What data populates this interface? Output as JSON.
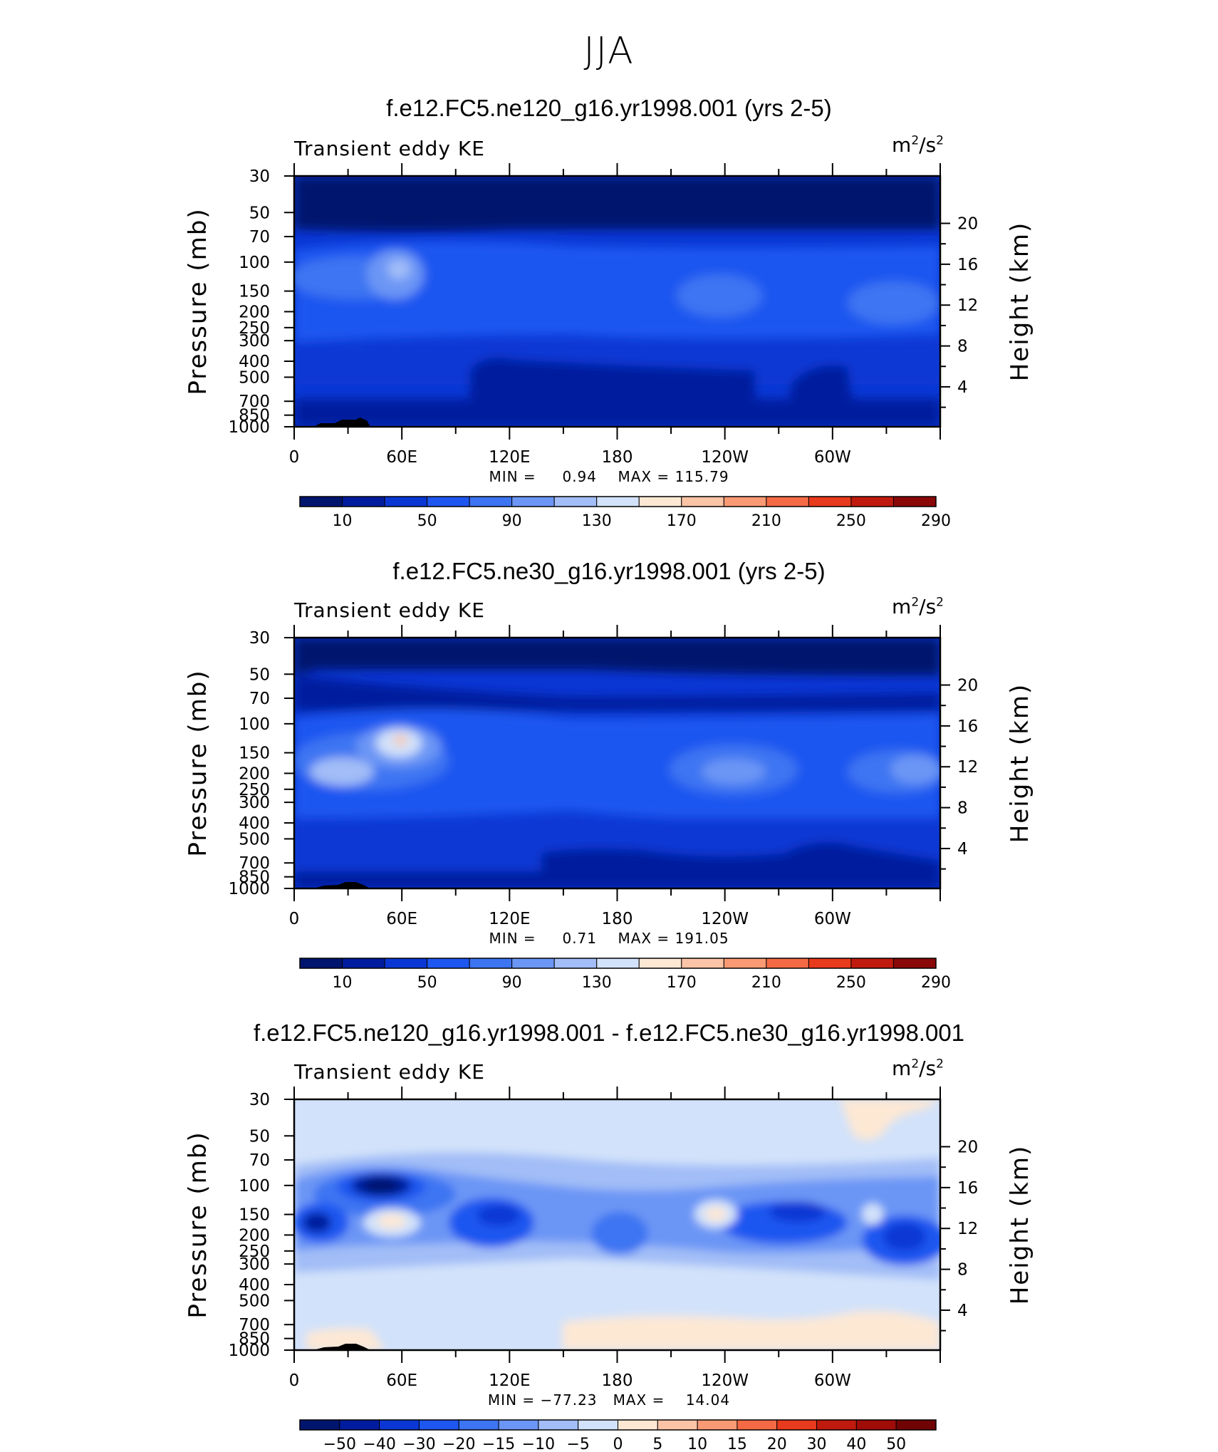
{
  "page": {
    "title": "JJA"
  },
  "chart_data": [
    {
      "type": "heatmap",
      "title": "f.e12.FC5.ne120_g16.yr1998.001 (yrs 2-5)",
      "left_string": "Transient eddy KE",
      "right_string": {
        "base": "m",
        "exp1": "2",
        "mid": "/s",
        "exp2": "2"
      },
      "ylabel": "Pressure (mb)",
      "y2label": "Height (km)",
      "x_ticks": [
        "0",
        "60E",
        "120E",
        "180",
        "120W",
        "60W"
      ],
      "y_ticks": [
        "30",
        "50",
        "70",
        "100",
        "150",
        "200",
        "250",
        "300",
        "400",
        "500",
        "700",
        "850",
        "1000"
      ],
      "y2_ticks": [
        "20",
        "16",
        "12",
        "8",
        "4"
      ],
      "min_label": "MIN =",
      "min_value": "0.94",
      "max_label": "MAX =",
      "max_value": "115.79",
      "stats": {
        "min": 0.94,
        "max": 115.79
      },
      "colorbar": {
        "labels": [
          "10",
          "50",
          "90",
          "130",
          "170",
          "210",
          "250",
          "290"
        ],
        "colors": [
          "#00156e",
          "#001c9e",
          "#0a37d4",
          "#1e56f0",
          "#3d74f2",
          "#6c96f5",
          "#a2bdf7",
          "#d2e2fa",
          "#fde8d4",
          "#fcc4a6",
          "#f99a74",
          "#f46a44",
          "#e83a1c",
          "#c01a0e",
          "#8a0808"
        ]
      }
    },
    {
      "type": "heatmap",
      "title": "f.e12.FC5.ne30_g16.yr1998.001 (yrs 2-5)",
      "left_string": "Transient eddy KE",
      "right_string": {
        "base": "m",
        "exp1": "2",
        "mid": "/s",
        "exp2": "2"
      },
      "ylabel": "Pressure (mb)",
      "y2label": "Height (km)",
      "x_ticks": [
        "0",
        "60E",
        "120E",
        "180",
        "120W",
        "60W"
      ],
      "y_ticks": [
        "30",
        "50",
        "70",
        "100",
        "150",
        "200",
        "250",
        "300",
        "400",
        "500",
        "700",
        "850",
        "1000"
      ],
      "y2_ticks": [
        "20",
        "16",
        "12",
        "8",
        "4"
      ],
      "min_label": "MIN =",
      "min_value": "0.71",
      "max_label": "MAX =",
      "max_value": "191.05",
      "stats": {
        "min": 0.71,
        "max": 191.05
      },
      "colorbar": {
        "labels": [
          "10",
          "50",
          "90",
          "130",
          "170",
          "210",
          "250",
          "290"
        ],
        "colors": [
          "#00156e",
          "#001c9e",
          "#0a37d4",
          "#1e56f0",
          "#3d74f2",
          "#6c96f5",
          "#a2bdf7",
          "#d2e2fa",
          "#fde8d4",
          "#fcc4a6",
          "#f99a74",
          "#f46a44",
          "#e83a1c",
          "#c01a0e",
          "#8a0808"
        ]
      }
    },
    {
      "type": "heatmap",
      "title": "f.e12.FC5.ne120_g16.yr1998.001 - f.e12.FC5.ne30_g16.yr1998.001",
      "left_string": "Transient eddy KE",
      "right_string": {
        "base": "m",
        "exp1": "2",
        "mid": "/s",
        "exp2": "2"
      },
      "ylabel": "Pressure (mb)",
      "y2label": "Height (km)",
      "x_ticks": [
        "0",
        "60E",
        "120E",
        "180",
        "120W",
        "60W"
      ],
      "y_ticks": [
        "30",
        "50",
        "70",
        "100",
        "150",
        "200",
        "250",
        "300",
        "400",
        "500",
        "700",
        "850",
        "1000"
      ],
      "y2_ticks": [
        "20",
        "16",
        "12",
        "8",
        "4"
      ],
      "min_label": "MIN =",
      "min_value": "−77.23",
      "max_label": "MAX =",
      "max_value": "14.04",
      "stats": {
        "min": -77.23,
        "max": 14.04
      },
      "colorbar": {
        "labels": [
          "−50",
          "−40",
          "−30",
          "−20",
          "−15",
          "−10",
          "−5",
          "0",
          "5",
          "10",
          "15",
          "20",
          "30",
          "40",
          "50"
        ],
        "colors": [
          "#00156e",
          "#001c9e",
          "#0a37d4",
          "#1e56f0",
          "#3d74f2",
          "#6c96f5",
          "#a2bdf7",
          "#d2e2fa",
          "#fde8d4",
          "#fcc4a6",
          "#f99a74",
          "#f46a44",
          "#e83a1c",
          "#c01a0e",
          "#a00c08",
          "#700404"
        ]
      }
    }
  ]
}
